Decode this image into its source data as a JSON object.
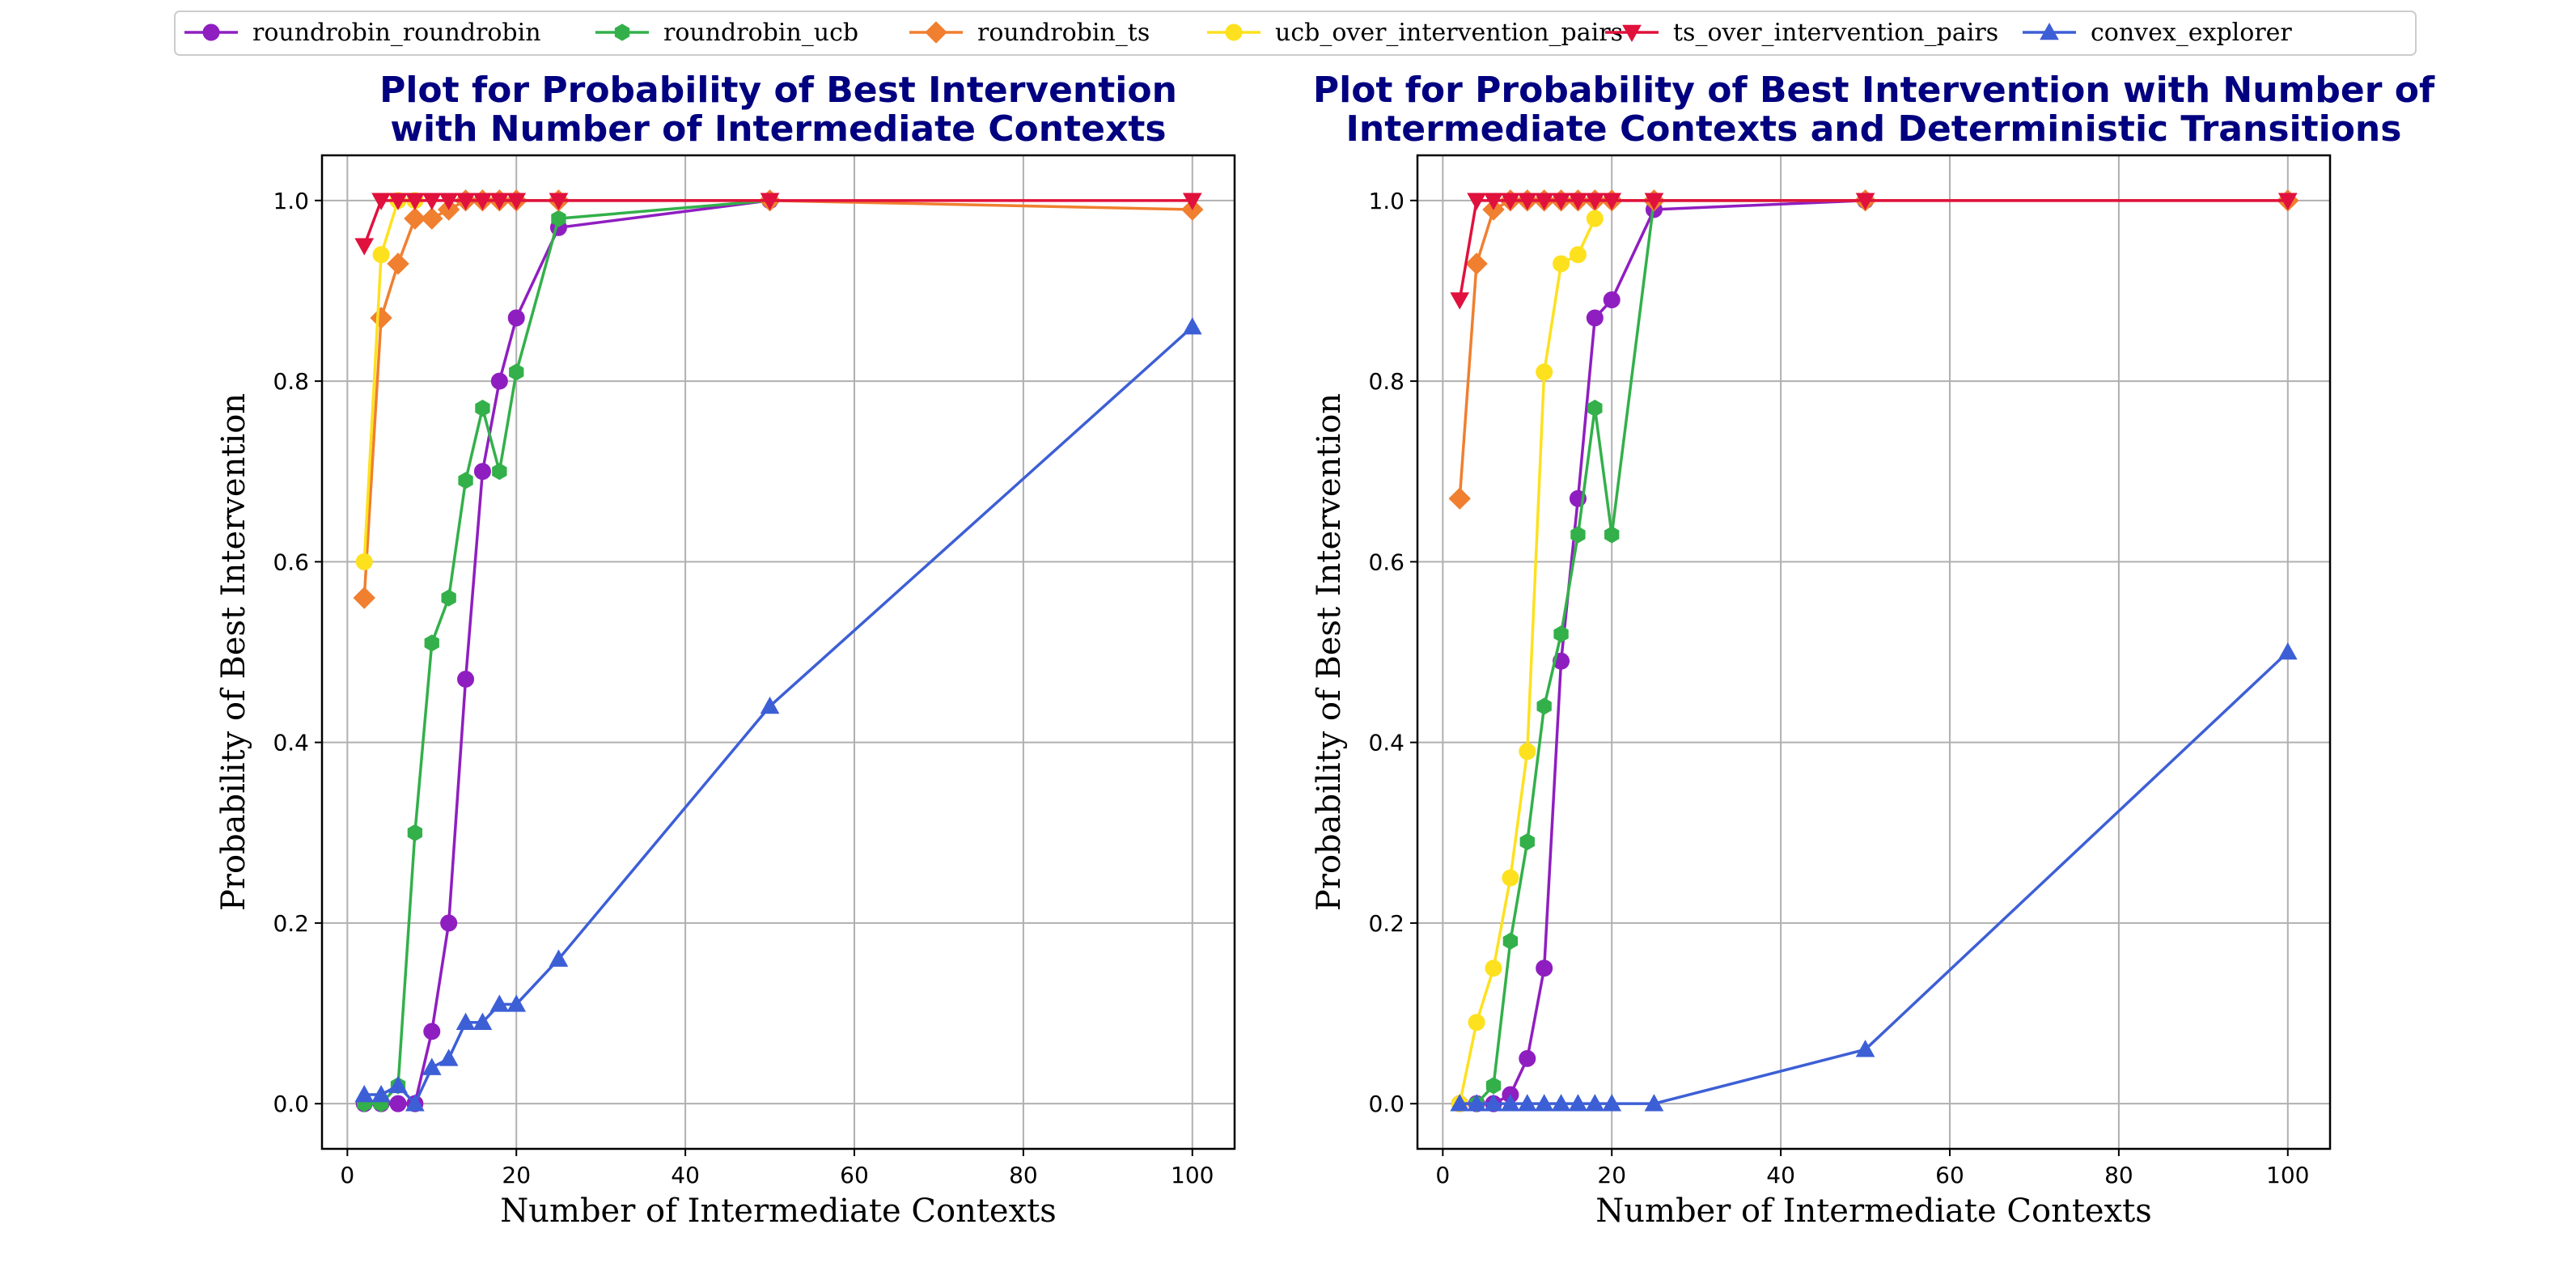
{
  "legend": {
    "placement": "top-center",
    "entries": [
      {
        "name": "roundrobin_roundrobin",
        "color": "#8f1ec0",
        "marker": "circle"
      },
      {
        "name": "roundrobin_ucb",
        "color": "#33b04a",
        "marker": "hexagon"
      },
      {
        "name": "roundrobin_ts",
        "color": "#f07f2f",
        "marker": "diamond"
      },
      {
        "name": "ucb_over_intervention_pairs",
        "color": "#fde11f",
        "marker": "circle"
      },
      {
        "name": "ts_over_intervention_pairs",
        "color": "#e0113c",
        "marker": "triangle-down"
      },
      {
        "name": "convex_explorer",
        "color": "#3d5fd6",
        "marker": "triangle-up"
      }
    ]
  },
  "chart_data": [
    {
      "type": "line",
      "title": "Plot for Probability of Best Intervention\nwith Number of Intermediate Contexts",
      "xlabel": "Number of Intermediate Contexts",
      "ylabel": "Probability of Best Intervention",
      "xlim": [
        -3,
        105
      ],
      "ylim": [
        -0.05,
        1.05
      ],
      "xticks": [
        0,
        20,
        40,
        60,
        80,
        100
      ],
      "yticks": [
        0.0,
        0.2,
        0.4,
        0.6,
        0.8,
        1.0
      ],
      "grid": true,
      "series": [
        {
          "name": "roundrobin_roundrobin",
          "x": [
            2,
            4,
            6,
            8,
            10,
            12,
            14,
            16,
            18,
            20,
            25,
            50
          ],
          "y": [
            0,
            0,
            0,
            0,
            0.08,
            0.2,
            0.47,
            0.7,
            0.8,
            0.87,
            0.97,
            1.0
          ]
        },
        {
          "name": "roundrobin_ucb",
          "x": [
            2,
            4,
            6,
            8,
            10,
            12,
            14,
            16,
            18,
            20,
            25,
            50
          ],
          "y": [
            0,
            0,
            0.02,
            0.3,
            0.51,
            0.56,
            0.69,
            0.77,
            0.7,
            0.81,
            0.98,
            1.0
          ]
        },
        {
          "name": "roundrobin_ts",
          "x": [
            2,
            4,
            6,
            8,
            10,
            12,
            14,
            16,
            18,
            20,
            25,
            50,
            100
          ],
          "y": [
            0.56,
            0.87,
            0.93,
            0.98,
            0.98,
            0.99,
            1.0,
            1.0,
            1.0,
            1.0,
            1.0,
            1.0,
            0.99
          ]
        },
        {
          "name": "ucb_over_intervention_pairs",
          "x": [
            2,
            4,
            6,
            8
          ],
          "y": [
            0.6,
            0.94,
            1.0,
            1.0
          ]
        },
        {
          "name": "ts_over_intervention_pairs",
          "x": [
            2,
            4,
            6,
            8,
            10,
            12,
            14,
            16,
            18,
            20,
            25,
            50,
            100
          ],
          "y": [
            0.95,
            1.0,
            1.0,
            1.0,
            1.0,
            1.0,
            1.0,
            1.0,
            1.0,
            1.0,
            1.0,
            1.0,
            1.0
          ]
        },
        {
          "name": "convex_explorer",
          "x": [
            2,
            4,
            6,
            8,
            10,
            12,
            14,
            16,
            18,
            20,
            25,
            50,
            100
          ],
          "y": [
            0.01,
            0.01,
            0.02,
            0.0,
            0.04,
            0.05,
            0.09,
            0.09,
            0.11,
            0.11,
            0.16,
            0.44,
            0.86
          ]
        }
      ]
    },
    {
      "type": "line",
      "title": "Plot for Probability of Best Intervention with Number of\nIntermediate Contexts and Deterministic Transitions",
      "xlabel": "Number of Intermediate Contexts",
      "ylabel": "Probability of Best Intervention",
      "xlim": [
        -3,
        105
      ],
      "ylim": [
        -0.05,
        1.05
      ],
      "xticks": [
        0,
        20,
        40,
        60,
        80,
        100
      ],
      "yticks": [
        0.0,
        0.2,
        0.4,
        0.6,
        0.8,
        1.0
      ],
      "grid": true,
      "series": [
        {
          "name": "roundrobin_roundrobin",
          "x": [
            2,
            4,
            6,
            8,
            10,
            12,
            14,
            16,
            18,
            20,
            25,
            50
          ],
          "y": [
            0,
            0,
            0,
            0.01,
            0.05,
            0.15,
            0.49,
            0.67,
            0.87,
            0.89,
            0.99,
            1.0
          ]
        },
        {
          "name": "roundrobin_ucb",
          "x": [
            2,
            4,
            6,
            8,
            10,
            12,
            14,
            16,
            18,
            20,
            25,
            50
          ],
          "y": [
            0,
            0,
            0.02,
            0.18,
            0.29,
            0.44,
            0.52,
            0.63,
            0.77,
            0.63,
            1.0,
            1.0
          ]
        },
        {
          "name": "roundrobin_ts",
          "x": [
            2,
            4,
            6,
            8,
            10,
            12,
            14,
            16,
            18,
            20,
            25,
            50,
            100
          ],
          "y": [
            0.67,
            0.93,
            0.99,
            1.0,
            1.0,
            1.0,
            1.0,
            1.0,
            1.0,
            1.0,
            1.0,
            1.0,
            1.0
          ]
        },
        {
          "name": "ucb_over_intervention_pairs",
          "x": [
            2,
            4,
            6,
            8,
            10,
            12,
            14,
            16,
            18
          ],
          "y": [
            0,
            0.09,
            0.15,
            0.25,
            0.39,
            0.81,
            0.93,
            0.94,
            0.98
          ]
        },
        {
          "name": "ts_over_intervention_pairs",
          "x": [
            2,
            4,
            6,
            8,
            10,
            12,
            14,
            16,
            18,
            20,
            25,
            50,
            100
          ],
          "y": [
            0.89,
            1.0,
            1.0,
            1.0,
            1.0,
            1.0,
            1.0,
            1.0,
            1.0,
            1.0,
            1.0,
            1.0,
            1.0
          ]
        },
        {
          "name": "convex_explorer",
          "x": [
            2,
            4,
            6,
            8,
            10,
            12,
            14,
            16,
            18,
            20,
            25,
            50,
            100
          ],
          "y": [
            0,
            0,
            0,
            0,
            0,
            0,
            0,
            0,
            0,
            0,
            0,
            0.06,
            0.5
          ]
        }
      ]
    }
  ]
}
